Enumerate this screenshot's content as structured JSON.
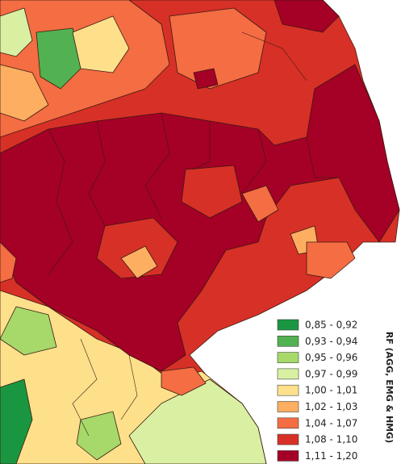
{
  "map": {
    "legend_title": "RF (AGG, EMG & HMG)",
    "legend": [
      {
        "label": "0,85 - 0,92",
        "color": "#1a9641"
      },
      {
        "label": "0,93 - 0,94",
        "color": "#52b151"
      },
      {
        "label": "0,95 - 0,96",
        "color": "#a6d96a"
      },
      {
        "label": "0,97 - 0,99",
        "color": "#d9f0a3"
      },
      {
        "label": "1,00 - 1,01",
        "color": "#fee08b"
      },
      {
        "label": "1,02 - 1,03",
        "color": "#fdae61"
      },
      {
        "label": "1,04 - 1,07",
        "color": "#f46d43"
      },
      {
        "label": "1,08 - 1,10",
        "color": "#d73027"
      },
      {
        "label": "1,11 - 1,20",
        "color": "#a50026"
      }
    ]
  }
}
